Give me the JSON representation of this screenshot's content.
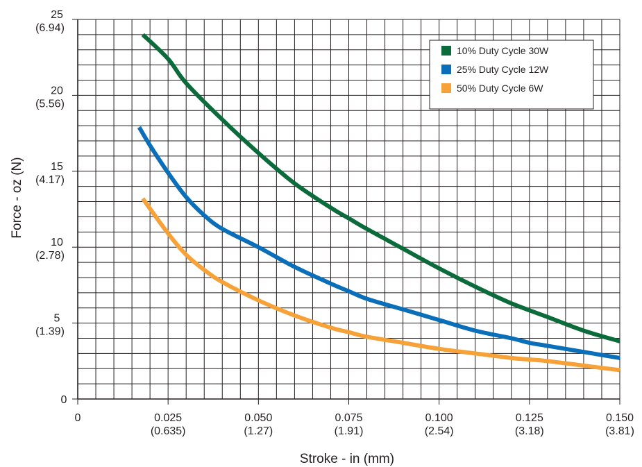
{
  "chart_data": {
    "type": "line",
    "title": "",
    "xlabel": "Stroke - in (mm)",
    "ylabel": "Force - oz (N)",
    "xlim": [
      0,
      0.15
    ],
    "ylim": [
      0,
      25
    ],
    "grid": true,
    "legend_position": "top-right",
    "x_ticks": [
      {
        "value": 0,
        "label": "0",
        "sublabel": ""
      },
      {
        "value": 0.025,
        "label": "0.025",
        "sublabel": "(0.635)"
      },
      {
        "value": 0.05,
        "label": "0.050",
        "sublabel": "(1.27)"
      },
      {
        "value": 0.075,
        "label": "0.075",
        "sublabel": "(1.91)"
      },
      {
        "value": 0.1,
        "label": "0.100",
        "sublabel": "(2.54)"
      },
      {
        "value": 0.125,
        "label": "0.125",
        "sublabel": "(3.18)"
      },
      {
        "value": 0.15,
        "label": "0.150",
        "sublabel": "(3.81)"
      }
    ],
    "y_ticks": [
      {
        "value": 0,
        "label": "0",
        "sublabel": ""
      },
      {
        "value": 5,
        "label": "5",
        "sublabel": "(1.39)"
      },
      {
        "value": 10,
        "label": "10",
        "sublabel": "(2.78)"
      },
      {
        "value": 15,
        "label": "15",
        "sublabel": "(4.17)"
      },
      {
        "value": 20,
        "label": "20",
        "sublabel": "(5.56)"
      },
      {
        "value": 25,
        "label": "25",
        "sublabel": "(6.94)"
      }
    ],
    "series": [
      {
        "name": "10% Duty Cycle 30W",
        "color": "#0b6b3a",
        "points": [
          [
            0.018,
            24.0
          ],
          [
            0.025,
            22.4
          ],
          [
            0.03,
            20.8
          ],
          [
            0.04,
            18.4
          ],
          [
            0.05,
            16.2
          ],
          [
            0.06,
            14.2
          ],
          [
            0.07,
            12.6
          ],
          [
            0.075,
            11.9
          ],
          [
            0.08,
            11.2
          ],
          [
            0.09,
            9.9
          ],
          [
            0.1,
            8.6
          ],
          [
            0.11,
            7.4
          ],
          [
            0.12,
            6.3
          ],
          [
            0.13,
            5.4
          ],
          [
            0.14,
            4.5
          ],
          [
            0.15,
            3.8
          ]
        ]
      },
      {
        "name": "25% Duty Cycle 12W",
        "color": "#0b6eb8",
        "points": [
          [
            0.017,
            17.9
          ],
          [
            0.02,
            16.7
          ],
          [
            0.025,
            14.9
          ],
          [
            0.03,
            13.3
          ],
          [
            0.035,
            12.1
          ],
          [
            0.04,
            11.2
          ],
          [
            0.05,
            10.0
          ],
          [
            0.06,
            8.7
          ],
          [
            0.07,
            7.6
          ],
          [
            0.075,
            7.1
          ],
          [
            0.08,
            6.6
          ],
          [
            0.09,
            5.9
          ],
          [
            0.1,
            5.2
          ],
          [
            0.11,
            4.5
          ],
          [
            0.12,
            4.0
          ],
          [
            0.125,
            3.7
          ],
          [
            0.13,
            3.5
          ],
          [
            0.14,
            3.1
          ],
          [
            0.15,
            2.7
          ]
        ]
      },
      {
        "name": "50% Duty Cycle 6W",
        "color": "#f7a239",
        "points": [
          [
            0.018,
            13.2
          ],
          [
            0.025,
            10.9
          ],
          [
            0.03,
            9.5
          ],
          [
            0.035,
            8.5
          ],
          [
            0.04,
            7.7
          ],
          [
            0.05,
            6.5
          ],
          [
            0.06,
            5.5
          ],
          [
            0.07,
            4.7
          ],
          [
            0.075,
            4.4
          ],
          [
            0.08,
            4.1
          ],
          [
            0.09,
            3.7
          ],
          [
            0.1,
            3.3
          ],
          [
            0.11,
            3.0
          ],
          [
            0.12,
            2.7
          ],
          [
            0.125,
            2.6
          ],
          [
            0.13,
            2.5
          ],
          [
            0.14,
            2.2
          ],
          [
            0.15,
            1.9
          ]
        ]
      }
    ]
  }
}
